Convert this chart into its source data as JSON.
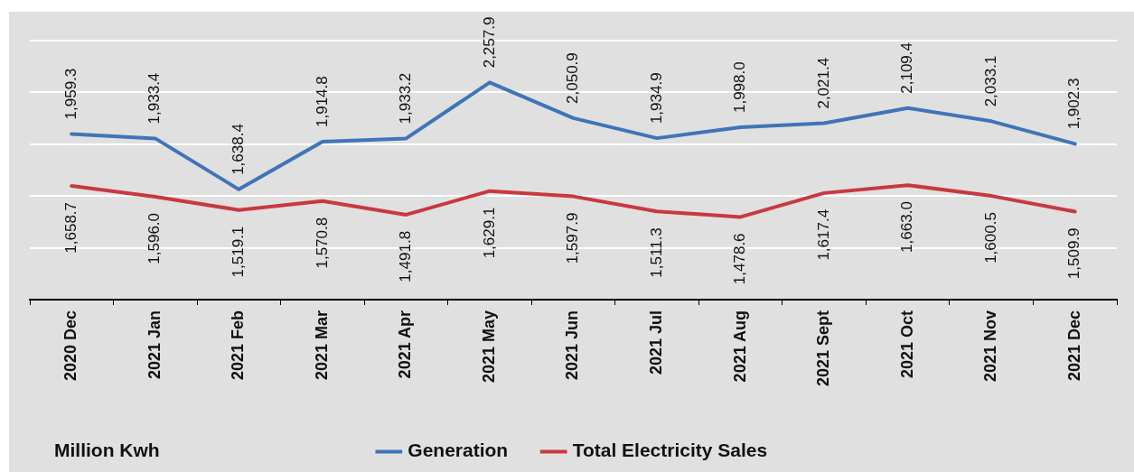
{
  "chart_data": {
    "type": "line",
    "categories": [
      "2020 Dec",
      "2021 Jan",
      "2021 Feb",
      "2021 Mar",
      "2021 Apr",
      "2021 May",
      "2021 Jun",
      "2021 Jul",
      "2021 Aug",
      "2021 Sept",
      "2021 Oct",
      "2021 Nov",
      "2021 Dec"
    ],
    "series": [
      {
        "name": "Generation",
        "color": "#3f74b9",
        "values": [
          1959.3,
          1933.4,
          1638.4,
          1914.8,
          1933.2,
          2257.9,
          2050.9,
          1934.9,
          1998.0,
          2021.4,
          2109.4,
          2033.1,
          1902.3
        ],
        "value_labels": [
          "1,959.3",
          "1,933.4",
          "1,638.4",
          "1,914.8",
          "1,933.2",
          "2,257.9",
          "2,050.9",
          "1,934.9",
          "1,998.0",
          "2,021.4",
          "2,109.4",
          "2,033.1",
          "1,902.3"
        ]
      },
      {
        "name": "Total Electricity Sales",
        "color": "#c8383f",
        "values": [
          1658.7,
          1596.0,
          1519.1,
          1570.8,
          1491.8,
          1629.1,
          1597.9,
          1511.3,
          1478.6,
          1617.4,
          1663.0,
          1600.5,
          1509.9
        ],
        "value_labels": [
          "1,658.7",
          "1,596.0",
          "1,519.1",
          "1,570.8",
          "1,491.8",
          "1,629.1",
          "1,597.9",
          "1,511.3",
          "1,478.6",
          "1,617.4",
          "1,663.0",
          "1,600.5",
          "1,509.9"
        ]
      }
    ],
    "ylim": [
      1000,
      2500
    ],
    "yticks": [
      {
        "value": 1000,
        "label": null
      },
      {
        "value": 1300,
        "label": null
      },
      {
        "value": 1600,
        "label": null
      },
      {
        "value": 1900,
        "label": null
      },
      {
        "value": 2200,
        "label": null
      },
      {
        "value": 2500,
        "label": null
      }
    ],
    "grid": "y",
    "legend": "bottom",
    "tick_labels": "x",
    "marker": "none",
    "line_style": "solid",
    "annotations": [
      "Million Kwh"
    ]
  }
}
